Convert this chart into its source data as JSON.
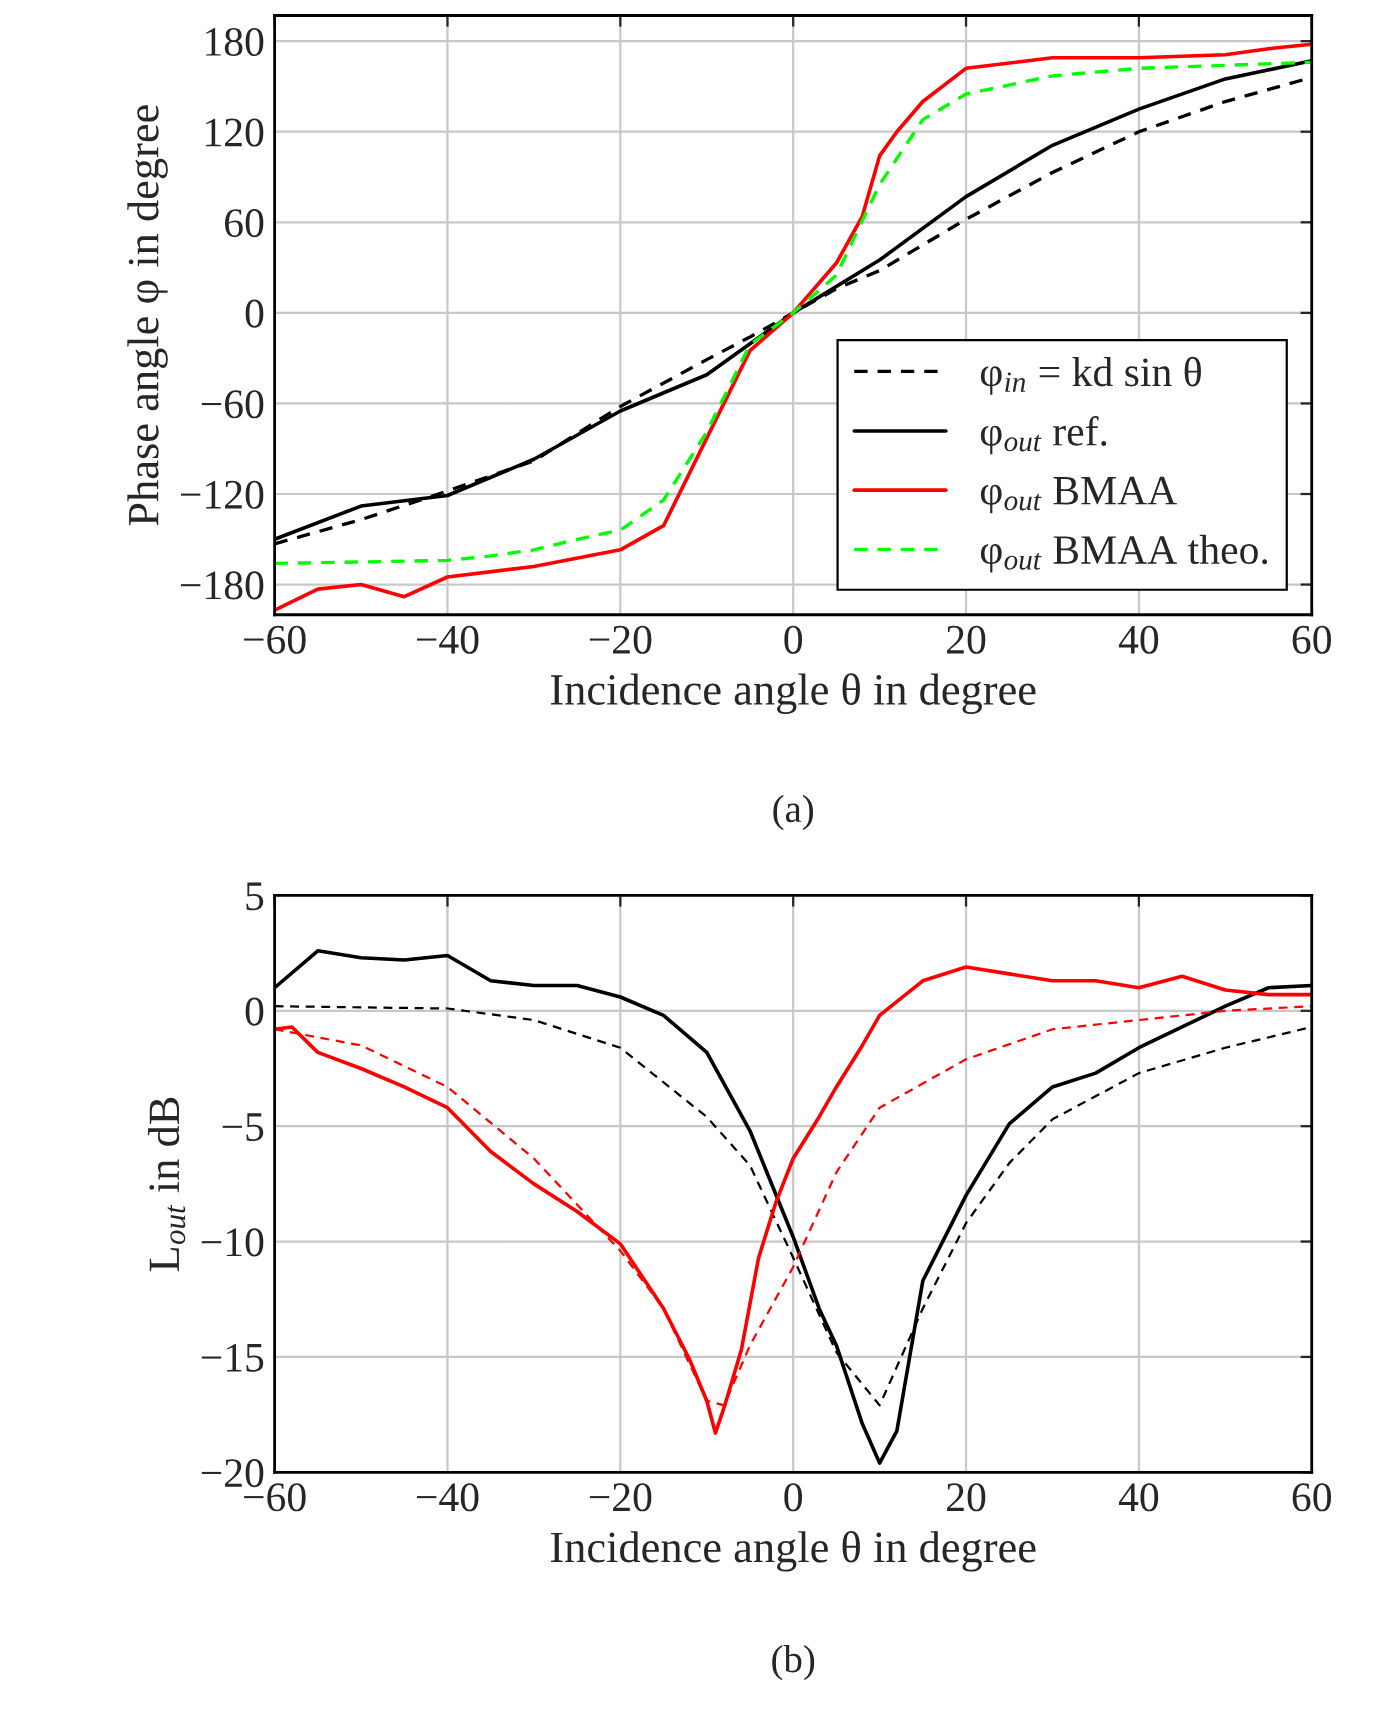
{
  "chart_data": [
    {
      "type": "line",
      "xlabel": "Incidence angle θ in degree",
      "ylabel": "Phase angle φ in degree",
      "annotations": [
        "(a)"
      ],
      "xlim": [
        -60,
        60
      ],
      "ylim": [
        -200,
        197
      ],
      "xticks": [
        -60,
        -40,
        -20,
        0,
        20,
        40,
        60
      ],
      "yticks": [
        -180,
        -120,
        -60,
        0,
        60,
        120,
        180
      ],
      "grid": true,
      "legend": "bottom right",
      "series": [
        {
          "name": "φ$_{in}$ = kd sin θ",
          "color": "#000000",
          "line_style": "dashed",
          "x": [
            -60,
            -50,
            -40,
            -30,
            -20,
            -10,
            -5,
            0,
            5,
            10,
            20,
            30,
            40,
            50,
            60
          ],
          "values": [
            -153,
            -137,
            -118,
            -98,
            -62,
            -31,
            -16,
            0,
            16,
            28,
            62,
            93,
            120,
            140,
            156
          ]
        },
        {
          "name": "φ$_{out}$ ref.",
          "color": "#000000",
          "line_style": "solid",
          "x": [
            -60,
            -50,
            -40,
            -30,
            -20,
            -10,
            0,
            10,
            20,
            30,
            40,
            50,
            60
          ],
          "values": [
            -150,
            -128,
            -121,
            -97,
            -65,
            -41,
            0,
            35,
            77,
            111,
            135,
            155,
            167
          ]
        },
        {
          "name": "φ$_{out}$ BMAA",
          "color": "#ff0000",
          "line_style": "solid",
          "x": [
            -60,
            -55,
            -50,
            -45,
            -40,
            -30,
            -20,
            -15,
            -10,
            -5,
            0,
            5,
            8,
            10,
            12,
            15,
            20,
            30,
            40,
            50,
            55,
            60
          ],
          "values": [
            -197,
            -183,
            -180,
            -188,
            -175,
            -168,
            -157,
            -141,
            -83,
            -25,
            0,
            33,
            64,
            104,
            120,
            140,
            162,
            169,
            169,
            171,
            175,
            178
          ]
        },
        {
          "name": "φ$_{out}$ BMAA theo.",
          "color": "#00ff00",
          "line_style": "dashed",
          "x": [
            -60,
            -50,
            -40,
            -35,
            -30,
            -25,
            -20,
            -15,
            -10,
            -5,
            0,
            5,
            10,
            15,
            20,
            30,
            40,
            50,
            60
          ],
          "values": [
            -166,
            -165,
            -164,
            -161,
            -157,
            -150,
            -144,
            -124,
            -79,
            -21,
            0,
            25,
            85,
            128,
            145,
            157,
            162,
            164,
            166
          ]
        }
      ]
    },
    {
      "type": "line",
      "xlabel": "Incidence angle θ in degree",
      "ylabel": "L$_{out}$ in dB",
      "annotations": [
        "(b)"
      ],
      "xlim": [
        -60,
        60
      ],
      "ylim": [
        -20,
        5
      ],
      "xticks": [
        -60,
        -40,
        -20,
        0,
        20,
        40,
        60
      ],
      "yticks": [
        -20,
        -15,
        -10,
        -5,
        0,
        5
      ],
      "grid": true,
      "series": [
        {
          "color": "#000000",
          "line_style": "solid",
          "x": [
            -60,
            -55,
            -50,
            -45,
            -40,
            -35,
            -30,
            -25,
            -20,
            -15,
            -10,
            -5,
            0,
            3,
            5,
            8,
            10,
            12,
            15,
            20,
            25,
            30,
            35,
            40,
            45,
            50,
            55,
            60
          ],
          "values": [
            1.0,
            2.6,
            2.3,
            2.2,
            2.4,
            1.3,
            1.1,
            1.1,
            0.6,
            -0.2,
            -1.8,
            -5.2,
            -9.8,
            -12.9,
            -14.5,
            -17.9,
            -19.6,
            -18.2,
            -11.7,
            -8.0,
            -4.9,
            -3.3,
            -2.7,
            -1.6,
            -0.7,
            0.2,
            1.0,
            1.1
          ]
        },
        {
          "color": "#000000",
          "line_style": "dashed",
          "x": [
            -60,
            -40,
            -30,
            -20,
            -10,
            -5,
            0,
            5,
            10,
            15,
            20,
            25,
            30,
            40,
            50,
            60
          ],
          "values": [
            0.2,
            0.1,
            -0.4,
            -1.6,
            -4.6,
            -6.7,
            -10.7,
            -14.8,
            -17.1,
            -12.9,
            -9.2,
            -6.6,
            -4.7,
            -2.7,
            -1.6,
            -0.7
          ]
        },
        {
          "color": "#ff0000",
          "line_style": "solid",
          "x": [
            -60,
            -58,
            -55,
            -50,
            -45,
            -40,
            -35,
            -30,
            -25,
            -20,
            -15,
            -12,
            -10,
            -9,
            -8,
            -6,
            -4,
            -2,
            0,
            3,
            5,
            8,
            10,
            15,
            20,
            25,
            30,
            35,
            40,
            45,
            50,
            55,
            60
          ],
          "values": [
            -0.8,
            -0.7,
            -1.8,
            -2.5,
            -3.3,
            -4.2,
            -6.1,
            -7.5,
            -8.7,
            -10.1,
            -12.9,
            -15.1,
            -16.9,
            -18.3,
            -17.2,
            -14.7,
            -10.7,
            -8.3,
            -6.4,
            -4.6,
            -3.3,
            -1.5,
            -0.2,
            1.3,
            1.9,
            1.6,
            1.3,
            1.3,
            1.0,
            1.5,
            0.9,
            0.7,
            0.7
          ]
        },
        {
          "color": "#ff0000",
          "line_style": "dashed",
          "x": [
            -60,
            -50,
            -40,
            -30,
            -20,
            -15,
            -10,
            -8,
            -5,
            0,
            5,
            10,
            20,
            30,
            40,
            50,
            60
          ],
          "values": [
            -0.8,
            -1.5,
            -3.3,
            -6.4,
            -10.4,
            -12.9,
            -16.9,
            -17.1,
            -14.5,
            -11.1,
            -7.0,
            -4.2,
            -2.1,
            -0.8,
            -0.4,
            0.0,
            0.2
          ]
        }
      ]
    }
  ]
}
